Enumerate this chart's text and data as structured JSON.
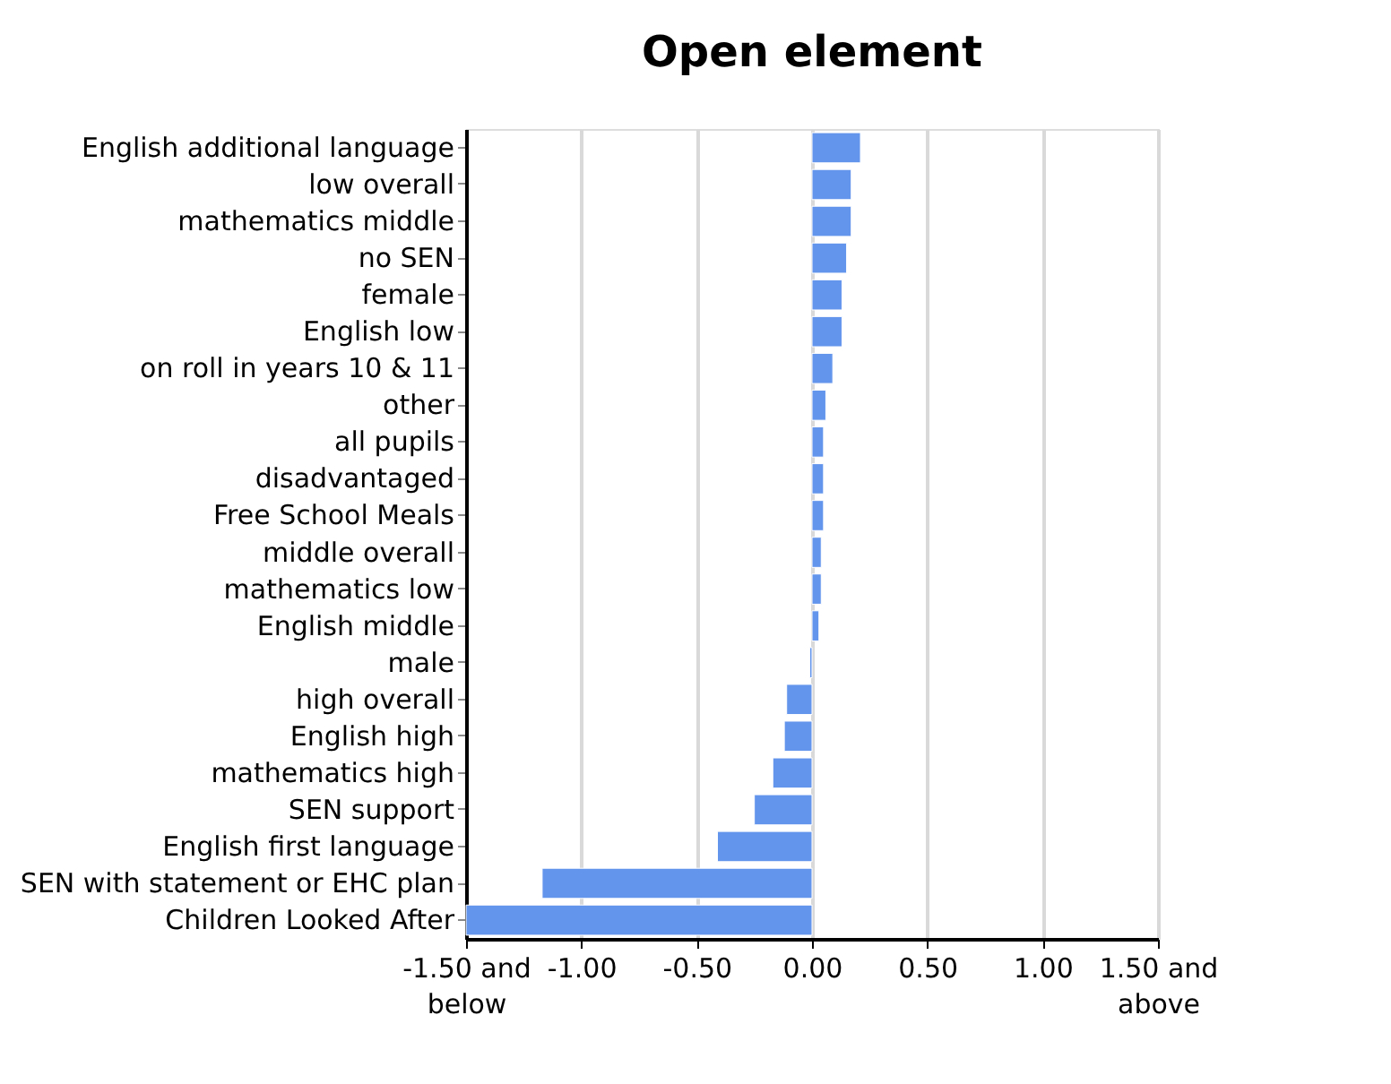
{
  "chart_data": {
    "type": "bar",
    "orientation": "horizontal",
    "title": "Open element",
    "categories": [
      "English additional language",
      "low overall",
      "mathematics middle",
      "no SEN",
      "female",
      "English low",
      "on roll in years 10 & 11",
      "other",
      "all pupils",
      "disadvantaged",
      "Free School Meals",
      "middle overall",
      "mathematics low",
      "English middle",
      "male",
      "high overall",
      "English high",
      "mathematics high",
      "SEN support",
      "English first language",
      "SEN with statement or EHC plan",
      "Children Looked After"
    ],
    "values": [
      0.21,
      0.17,
      0.17,
      0.15,
      0.13,
      0.13,
      0.09,
      0.06,
      0.05,
      0.05,
      0.05,
      0.04,
      0.04,
      0.03,
      -0.01,
      -0.11,
      -0.12,
      -0.17,
      -0.25,
      -0.41,
      -1.17,
      -1.5
    ],
    "color": "#6495ed",
    "xlim": [
      -1.5,
      1.5
    ],
    "xticks": [
      {
        "value": -1.5,
        "label": "-1.50 and below"
      },
      {
        "value": -1.0,
        "label": "-1.00"
      },
      {
        "value": -0.5,
        "label": "-0.50"
      },
      {
        "value": 0,
        "label": "0.00"
      },
      {
        "value": 0.5,
        "label": "0.50"
      },
      {
        "value": 1.0,
        "label": "1.00"
      },
      {
        "value": 1.5,
        "label": "1.50 and above"
      }
    ],
    "grid": "x"
  }
}
